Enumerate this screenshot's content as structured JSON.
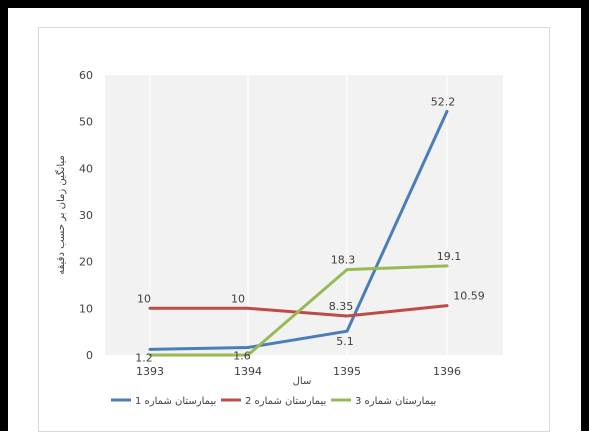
{
  "chart_data": {
    "type": "line",
    "title": "",
    "xlabel": "سال",
    "ylabel": "میانگین زمان بر حسب دقیقه",
    "categories": [
      "1393",
      "1394",
      "1395",
      "1396"
    ],
    "ylim": [
      0,
      60
    ],
    "yticks": [
      "0",
      "10",
      "20",
      "30",
      "40",
      "50",
      "60"
    ],
    "grid": "vertical",
    "legend": "bottom",
    "series": [
      {
        "name": "بیمارستان شماره 1",
        "color": "#4a7ebb",
        "values": [
          1.2,
          1.6,
          5.1,
          52.2
        ],
        "labels": [
          "1.2",
          "1.6",
          "5.1",
          "52.2"
        ]
      },
      {
        "name": "بیمارستان شماره 2",
        "color": "#be4b48",
        "values": [
          10,
          10,
          8.35,
          10.59
        ],
        "labels": [
          "10",
          "10",
          "8.35",
          "10.59"
        ]
      },
      {
        "name": "بیمارستان شماره 3",
        "color": "#98b954",
        "values": [
          0,
          0,
          18.3,
          19.1
        ],
        "labels": [
          "",
          "",
          "18.3",
          "19.1"
        ]
      }
    ]
  }
}
